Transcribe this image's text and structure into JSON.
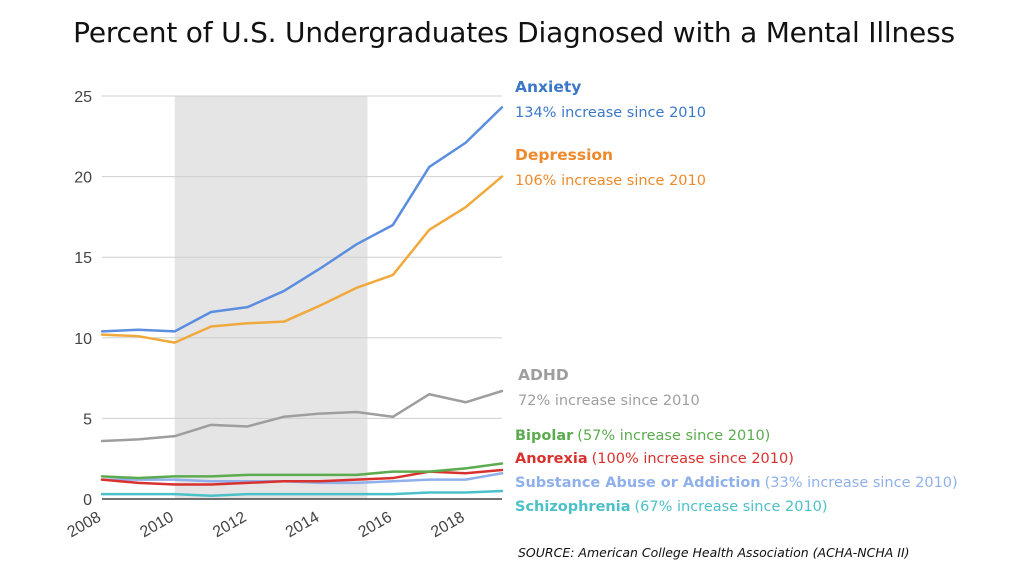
{
  "title": "Percent of U.S. Undergraduates Diagnosed with a Mental Illness",
  "source": "SOURCE: American College Health Association (ACHA-NCHA II)",
  "chart_data": {
    "type": "line",
    "x": [
      2008,
      2009,
      2010,
      2011,
      2012,
      2013,
      2014,
      2015,
      2016,
      2017,
      2018,
      2019
    ],
    "xticks": [
      "2008",
      "2010",
      "2012",
      "2014",
      "2016",
      "2018"
    ],
    "yticks": [
      "0",
      "5",
      "10",
      "15",
      "20",
      "25"
    ],
    "ylim": [
      0,
      25
    ],
    "xlim": [
      2008,
      2019
    ],
    "shaded_range": [
      2010,
      2015.3
    ],
    "series": [
      {
        "name": "Anxiety",
        "color": "#5b8ee0",
        "label_color": "#3b78c8",
        "annotation": "134% increase since 2010",
        "values": [
          10.4,
          10.5,
          10.4,
          11.6,
          11.9,
          12.9,
          14.3,
          15.8,
          17.0,
          20.6,
          22.1,
          24.3
        ]
      },
      {
        "name": "Depression",
        "color": "#f0a93c",
        "label_color": "#ee8a2c",
        "annotation": "106% increase since 2010",
        "values": [
          10.2,
          10.1,
          9.7,
          10.7,
          10.9,
          11.0,
          12.0,
          13.1,
          13.9,
          16.7,
          18.1,
          20.0
        ]
      },
      {
        "name": "ADHD",
        "color": "#9e9e9e",
        "label_color": "#9e9e9e",
        "annotation": "72% increase since 2010",
        "values": [
          3.6,
          3.7,
          3.9,
          4.6,
          4.5,
          5.1,
          5.3,
          5.4,
          5.1,
          6.5,
          6.0,
          6.7
        ]
      },
      {
        "name": "Bipolar",
        "color": "#5cab4f",
        "label_color": "#5cab4f",
        "annotation": "(57% increase since 2010)",
        "values": [
          1.4,
          1.3,
          1.4,
          1.4,
          1.5,
          1.5,
          1.5,
          1.5,
          1.7,
          1.7,
          1.9,
          2.2
        ]
      },
      {
        "name": "Anorexia",
        "color": "#d9322e",
        "label_color": "#d9322e",
        "annotation": "(100% increase since 2010)",
        "values": [
          1.2,
          1.0,
          0.9,
          0.9,
          1.0,
          1.1,
          1.1,
          1.2,
          1.3,
          1.7,
          1.6,
          1.8
        ]
      },
      {
        "name": "Substance Abuse or Addiction",
        "color": "#8fb0ea",
        "label_color": "#8fb0ea",
        "annotation": "(33% increase since 2010)",
        "values": [
          1.2,
          1.2,
          1.2,
          1.1,
          1.1,
          1.1,
          1.0,
          1.0,
          1.1,
          1.2,
          1.2,
          1.6
        ]
      },
      {
        "name": "Schizophrenia",
        "color": "#4cc0c8",
        "label_color": "#4cc0c8",
        "annotation": "(67% increase since 2010)",
        "values": [
          0.3,
          0.3,
          0.3,
          0.2,
          0.3,
          0.3,
          0.3,
          0.3,
          0.3,
          0.4,
          0.4,
          0.5
        ]
      }
    ]
  }
}
